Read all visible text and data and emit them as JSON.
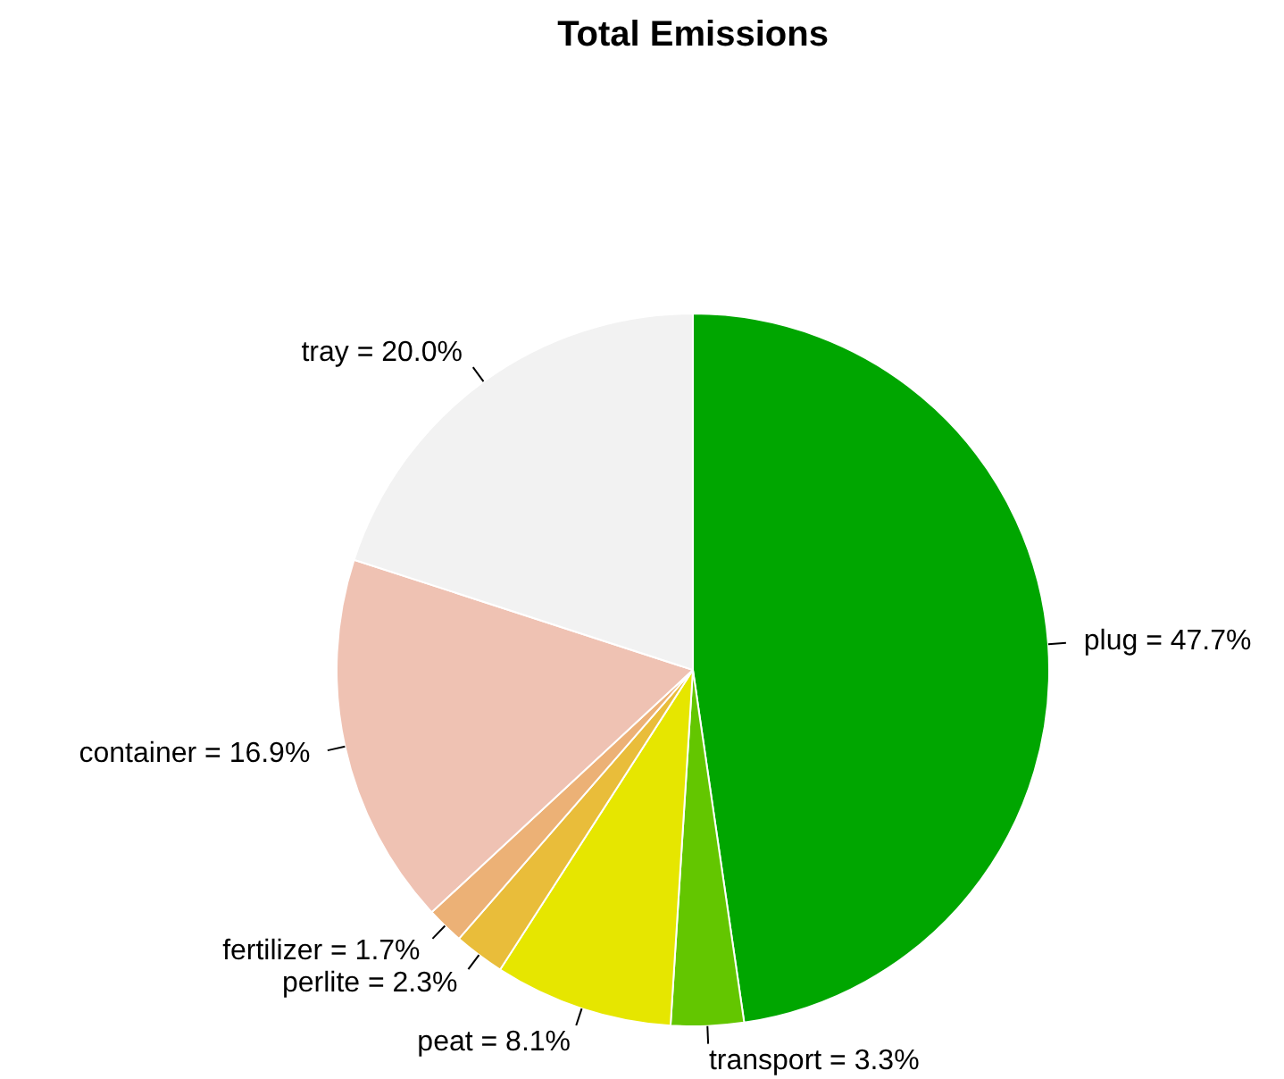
{
  "chart_data": {
    "type": "pie",
    "title": "Total Emissions",
    "categories": [
      "plug = 47.7%",
      "transport = 3.3%",
      "peat = 8.1%",
      "perlite = 2.3%",
      "fertilizer = 1.7%",
      "container = 16.9%",
      "tray = 20.0%"
    ],
    "values": [
      47.7,
      3.3,
      8.1,
      2.3,
      1.7,
      16.9,
      20.0
    ],
    "colors": [
      "#00a600",
      "#63c600",
      "#e6e600",
      "#e9bd3a",
      "#ecb176",
      "#efc2b3",
      "#f2f2f2"
    ],
    "legend": false
  }
}
